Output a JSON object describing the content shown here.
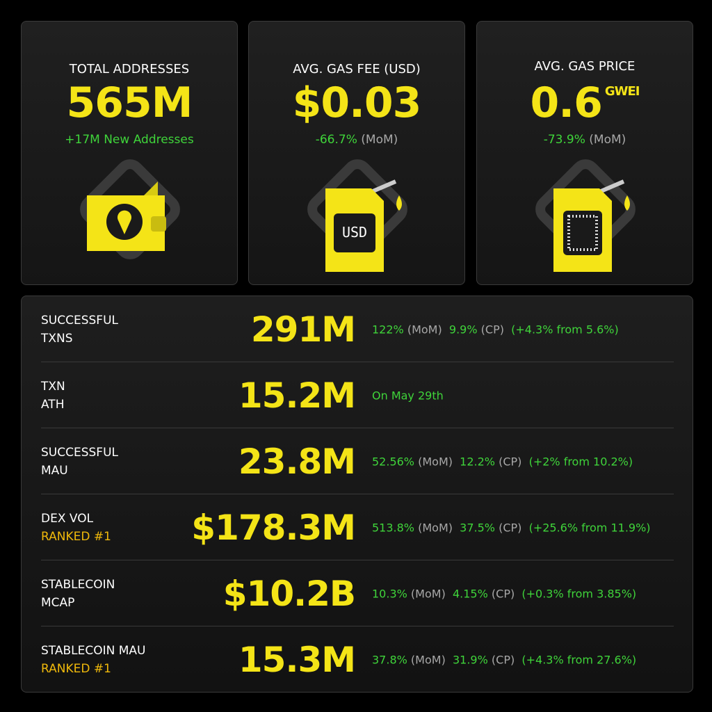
{
  "cards": [
    {
      "title": "TOTAL ADDRESSES",
      "value": "565M",
      "note": "+17M New Addresses"
    },
    {
      "title": "AVG. GAS FEE (USD)",
      "value": "$0.03",
      "change": "-66.7%",
      "period": "(MoM)",
      "icon_text": "USD"
    },
    {
      "title": "AVG. GAS PRICE",
      "value": "0.6",
      "unit": "GWEI",
      "change": "-73.9%",
      "period": "(MoM)"
    }
  ],
  "rows": [
    {
      "label": [
        "SUCCESSFUL",
        "TXNS"
      ],
      "value": "291M",
      "stats": [
        {
          "value": "122%",
          "tag": "(MoM)"
        },
        {
          "value": "9.9%",
          "tag": "(CP)"
        }
      ],
      "extra": "(+4.3% from 5.6%)"
    },
    {
      "label": [
        "TXN",
        "ATH"
      ],
      "value": "15.2M",
      "note": "On May 29th"
    },
    {
      "label": [
        "SUCCESSFUL",
        "MAU"
      ],
      "value": "23.8M",
      "stats": [
        {
          "value": "52.56%",
          "tag": "(MoM)"
        },
        {
          "value": "12.2%",
          "tag": "(CP)"
        }
      ],
      "extra": "(+2% from 10.2%)"
    },
    {
      "label": [
        "DEX VOL"
      ],
      "rank": "RANKED #1",
      "value": "$178.3M",
      "stats": [
        {
          "value": "513.8%",
          "tag": "(MoM)"
        },
        {
          "value": "37.5%",
          "tag": "(CP)"
        }
      ],
      "extra": "(+25.6% from 11.9%)"
    },
    {
      "label": [
        "STABLECOIN",
        "MCAP"
      ],
      "value": "$10.2B",
      "stats": [
        {
          "value": "10.3%",
          "tag": "(MoM)"
        },
        {
          "value": "4.15%",
          "tag": "(CP)"
        }
      ],
      "extra": "(+0.3% from 3.85%)"
    },
    {
      "label": [
        "STABLECOIN MAU"
      ],
      "rank": "RANKED #1",
      "value": "15.3M",
      "stats": [
        {
          "value": "37.8%",
          "tag": "(MoM)"
        },
        {
          "value": "31.9%",
          "tag": "(CP)"
        }
      ],
      "extra": "(+4.3% from 27.6%)"
    }
  ]
}
